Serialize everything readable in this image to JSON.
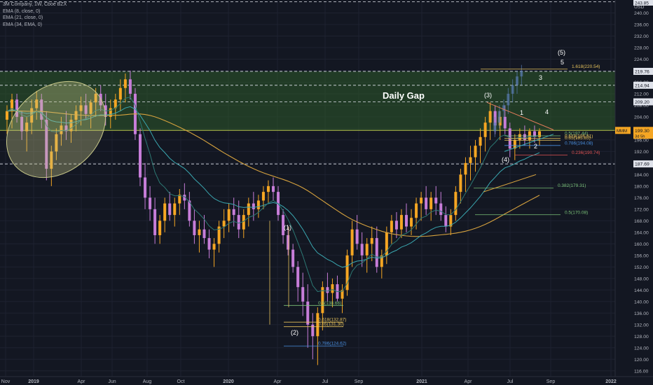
{
  "header": {
    "title": "3M Company, 1W, Cboe BZX",
    "indicators": [
      "EMA (8, close, 0)",
      "EMA (21, close, 0)",
      "EMA (34, EMA, 0)"
    ],
    "currency": "USD"
  },
  "colors": {
    "background": "#131722",
    "up_candle": "#f5a623",
    "down_candle": "#c77dd9",
    "ema8": "#2c7873",
    "ema21": "#3aa7b0",
    "ema34": "#d6a23e",
    "gap_zone": "#2e5a2a",
    "ellipse": "#c9c98a",
    "price_badge": "#f5a623"
  },
  "annotations": {
    "daily_gap": "Daily Gap",
    "wave_3": "(3)",
    "wave_4": "(4)",
    "wave_5": "(5)",
    "wave_1": "(1)",
    "wave_2": "(2)",
    "sub_1": "1",
    "sub_2": "2",
    "sub_3": "3",
    "sub_4": "4",
    "sub_5": "5",
    "mmm_tag": "MMM"
  },
  "chart_data": {
    "type": "candlestick",
    "title": "3M Company, 1W, Cboe BZX",
    "y_axis": {
      "range": [
        114,
        244
      ],
      "ticks": [
        116,
        120,
        124,
        128,
        132,
        136,
        140,
        144,
        148,
        152,
        156,
        160,
        164,
        168,
        172,
        176,
        180,
        184,
        188,
        192,
        196,
        200,
        204,
        208,
        212,
        216,
        220,
        224,
        228,
        232,
        236,
        240
      ],
      "tick_labels": [
        "116.00",
        "120.00",
        "124.00",
        "128.00",
        "132.00",
        "136.00",
        "140.00",
        "144.00",
        "148.00",
        "152.00",
        "156.00",
        "160.00",
        "164.00",
        "168.00",
        "172.00",
        "176.00",
        "180.00",
        "184.00",
        "188.00",
        "192.00",
        "196.00",
        "200.00",
        "204.00",
        "208.00",
        "212.00",
        "216.00",
        "220.00",
        "224.00",
        "228.00",
        "232.00",
        "236.00",
        "240.00"
      ],
      "scale": "linear"
    },
    "x_axis": {
      "tick_labels": [
        "Nov",
        "2019",
        "Apr",
        "Jun",
        "Aug",
        "Oct",
        "2020",
        "Apr",
        "Jul",
        "Sep",
        "2021",
        "Apr",
        "Jul",
        "Sep",
        "2022"
      ]
    },
    "price_lines": [
      {
        "label": "219.76",
        "value": 219.76
      },
      {
        "label": "214.94",
        "value": 214.94
      },
      {
        "label": "209.20",
        "value": 209.2
      },
      {
        "label": "187.69",
        "value": 187.69
      }
    ],
    "current_price": {
      "label": "199.30",
      "value": 199.3,
      "countdown": "3d 5h"
    },
    "top_badge": "243.85",
    "gap_zone": {
      "low": 199.3,
      "high": 219.76
    },
    "fib_levels": [
      {
        "label": "1.618(220.54)",
        "value": 220.54
      },
      {
        "label": "0.5(197.44)",
        "value": 197.44
      },
      {
        "label": "0.618(196.51)",
        "value": 196.51
      },
      {
        "label": "0.65(195.85)",
        "value": 195.85
      },
      {
        "label": "0.786(194.08)",
        "value": 194.08
      },
      {
        "label": "0.236(190.74)",
        "value": 190.74
      },
      {
        "label": "0.382(179.31)",
        "value": 179.31
      },
      {
        "label": "0.5(170.08)",
        "value": 170.08
      },
      {
        "label": "0.5(138.66)",
        "value": 138.66
      },
      {
        "label": "0.618(132.87)",
        "value": 132.87
      },
      {
        "label": "0.65(131.30)",
        "value": 131.3
      },
      {
        "label": "0.786(124.62)",
        "value": 124.62
      }
    ],
    "candles": [
      [
        203,
        208,
        198,
        206
      ],
      [
        206,
        212,
        200,
        210
      ],
      [
        210,
        212,
        202,
        204
      ],
      [
        204,
        206,
        196,
        199
      ],
      [
        199,
        204,
        192,
        202
      ],
      [
        202,
        210,
        198,
        207
      ],
      [
        207,
        213,
        203,
        210
      ],
      [
        210,
        212,
        200,
        203
      ],
      [
        203,
        206,
        182,
        186
      ],
      [
        186,
        194,
        180,
        192
      ],
      [
        192,
        200,
        189,
        198
      ],
      [
        198,
        204,
        194,
        201
      ],
      [
        201,
        206,
        196,
        199
      ],
      [
        199,
        205,
        195,
        203
      ],
      [
        203,
        208,
        199,
        206
      ],
      [
        206,
        211,
        201,
        208
      ],
      [
        208,
        212,
        203,
        205
      ],
      [
        205,
        210,
        200,
        209
      ],
      [
        209,
        214,
        204,
        212
      ],
      [
        212,
        215,
        206,
        208
      ],
      [
        208,
        212,
        201,
        204
      ],
      [
        204,
        210,
        200,
        207
      ],
      [
        207,
        212,
        203,
        210
      ],
      [
        210,
        217,
        206,
        214
      ],
      [
        214,
        219,
        209,
        217
      ],
      [
        217,
        220,
        210,
        212
      ],
      [
        212,
        214,
        196,
        198
      ],
      [
        198,
        200,
        180,
        183
      ],
      [
        183,
        188,
        172,
        176
      ],
      [
        176,
        180,
        168,
        172
      ],
      [
        172,
        176,
        160,
        163
      ],
      [
        163,
        170,
        160,
        168
      ],
      [
        168,
        176,
        164,
        174
      ],
      [
        174,
        178,
        168,
        170
      ],
      [
        170,
        176,
        166,
        174
      ],
      [
        174,
        179,
        170,
        177
      ],
      [
        177,
        181,
        172,
        175
      ],
      [
        175,
        178,
        166,
        168
      ],
      [
        168,
        172,
        160,
        163
      ],
      [
        163,
        168,
        157,
        165
      ],
      [
        165,
        170,
        160,
        162
      ],
      [
        162,
        165,
        155,
        158
      ],
      [
        158,
        162,
        152,
        160
      ],
      [
        160,
        168,
        157,
        166
      ],
      [
        166,
        172,
        162,
        168
      ],
      [
        168,
        174,
        164,
        172
      ],
      [
        172,
        176,
        166,
        170
      ],
      [
        170,
        175,
        162,
        165
      ],
      [
        165,
        172,
        162,
        170
      ],
      [
        170,
        176,
        166,
        174
      ],
      [
        174,
        178,
        168,
        172
      ],
      [
        172,
        177,
        169,
        175
      ],
      [
        175,
        180,
        172,
        178
      ],
      [
        178,
        182,
        174,
        180
      ],
      [
        180,
        183,
        175,
        178
      ],
      [
        178,
        180,
        168,
        170
      ],
      [
        170,
        172,
        160,
        163
      ],
      [
        163,
        166,
        156,
        158
      ],
      [
        158,
        160,
        150,
        152
      ],
      [
        152,
        154,
        140,
        145
      ],
      [
        145,
        150,
        135,
        140
      ],
      [
        140,
        146,
        124,
        132
      ],
      [
        132,
        136,
        120,
        128
      ],
      [
        128,
        138,
        118,
        136
      ],
      [
        136,
        147,
        130,
        145
      ],
      [
        145,
        150,
        140,
        143
      ],
      [
        143,
        148,
        138,
        146
      ],
      [
        146,
        149,
        140,
        141
      ],
      [
        141,
        146,
        136,
        144
      ],
      [
        144,
        158,
        142,
        156
      ],
      [
        156,
        168,
        152,
        165
      ],
      [
        165,
        170,
        158,
        160
      ],
      [
        160,
        164,
        152,
        156
      ],
      [
        156,
        162,
        150,
        160
      ],
      [
        160,
        166,
        154,
        162
      ],
      [
        162,
        166,
        150,
        152
      ],
      [
        152,
        158,
        148,
        156
      ],
      [
        156,
        166,
        153,
        164
      ],
      [
        164,
        170,
        160,
        168
      ],
      [
        168,
        171,
        162,
        165
      ],
      [
        165,
        172,
        162,
        170
      ],
      [
        170,
        174,
        164,
        166
      ],
      [
        166,
        172,
        163,
        169
      ],
      [
        169,
        176,
        165,
        174
      ],
      [
        174,
        178,
        168,
        176
      ],
      [
        176,
        180,
        170,
        172
      ],
      [
        172,
        178,
        168,
        176
      ],
      [
        176,
        180,
        170,
        174
      ],
      [
        174,
        178,
        168,
        170
      ],
      [
        170,
        173,
        164,
        166
      ],
      [
        166,
        172,
        163,
        170
      ],
      [
        170,
        180,
        168,
        178
      ],
      [
        178,
        186,
        174,
        184
      ],
      [
        184,
        190,
        178,
        188
      ],
      [
        188,
        194,
        182,
        190
      ],
      [
        190,
        196,
        185,
        194
      ],
      [
        194,
        200,
        188,
        197
      ],
      [
        197,
        204,
        192,
        202
      ],
      [
        202,
        209,
        196,
        206
      ],
      [
        206,
        208,
        198,
        201
      ],
      [
        201,
        206,
        196,
        204
      ],
      [
        204,
        208,
        198,
        200
      ],
      [
        200,
        202,
        190,
        193
      ],
      [
        193,
        198,
        189,
        196
      ],
      [
        196,
        200,
        193,
        198
      ],
      [
        198,
        201,
        194,
        196
      ],
      [
        196,
        200,
        193,
        199
      ],
      [
        199,
        201,
        195,
        197
      ],
      [
        197,
        200,
        194,
        199
      ]
    ],
    "future_candles": [
      [
        199,
        204,
        197,
        202
      ],
      [
        202,
        208,
        200,
        206
      ],
      [
        206,
        210,
        203,
        208
      ],
      [
        208,
        214,
        205,
        212
      ],
      [
        212,
        217,
        209,
        215
      ],
      [
        215,
        220,
        212,
        218
      ],
      [
        218,
        222,
        215,
        220
      ]
    ]
  }
}
